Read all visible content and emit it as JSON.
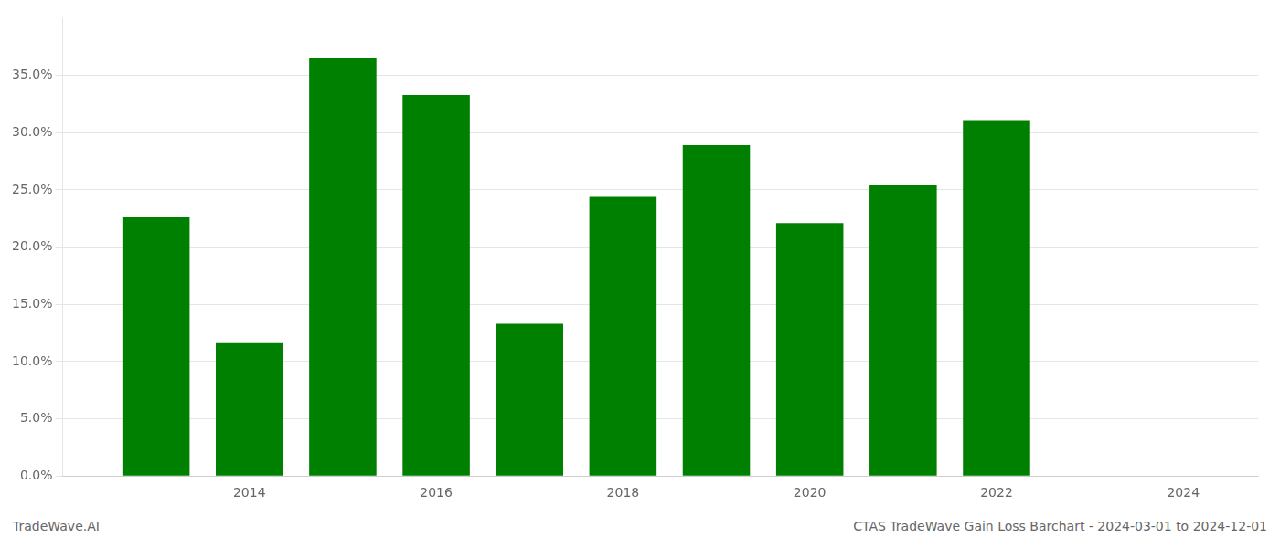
{
  "chart_data": {
    "type": "bar",
    "x": [
      2013,
      2014,
      2015,
      2016,
      2017,
      2018,
      2019,
      2020,
      2021,
      2022
    ],
    "values": [
      0.226,
      0.116,
      0.365,
      0.333,
      0.133,
      0.244,
      0.289,
      0.221,
      0.254,
      0.311
    ],
    "color": "#008000",
    "xlim": [
      2012.0,
      2024.8
    ],
    "xticks": [
      2014,
      2016,
      2018,
      2020,
      2022,
      2024
    ],
    "ylim": [
      0,
      0.4
    ],
    "yticks": [
      {
        "value": 0.0,
        "label": "0.0%"
      },
      {
        "value": 0.05,
        "label": "5.0%"
      },
      {
        "value": 0.1,
        "label": "10.0%"
      },
      {
        "value": 0.15,
        "label": "15.0%"
      },
      {
        "value": 0.2,
        "label": "20.0%"
      },
      {
        "value": 0.25,
        "label": "25.0%"
      },
      {
        "value": 0.3,
        "label": "30.0%"
      },
      {
        "value": 0.35,
        "label": "35.0%"
      }
    ],
    "grid": true,
    "annotations": [
      "TradeWave.AI",
      "CTAS TradeWave Gain Loss Barchart - 2024-03-01 to 2024-12-01"
    ]
  }
}
